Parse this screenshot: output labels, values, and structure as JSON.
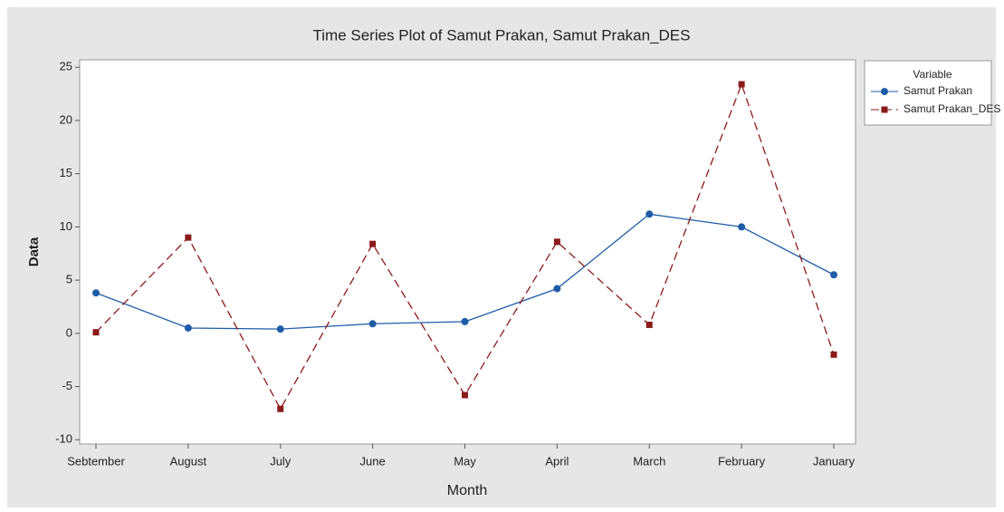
{
  "chart_data": {
    "type": "line",
    "title": "Time Series Plot of Samut Prakan, Samut Prakan_DES",
    "x_label": "Month",
    "y_label": "Data",
    "categories": [
      "Sebtember",
      "August",
      "July",
      "June",
      "May",
      "April",
      "March",
      "February",
      "January"
    ],
    "series": [
      {
        "name": "Samut Prakan",
        "color": "#1f5ca8",
        "marker": "circle",
        "dash": "solid",
        "values": [
          3.8,
          0.5,
          0.4,
          0.9,
          1.1,
          4.2,
          11.2,
          10.0,
          5.5
        ]
      },
      {
        "name": "Samut Prakan_DES",
        "color": "#8b1a1a",
        "marker": "square",
        "dash": "dashed",
        "values": [
          0.1,
          9.0,
          -7.1,
          8.4,
          -5.8,
          8.6,
          0.8,
          23.4,
          -2.0
        ]
      }
    ],
    "ylim": [
      -10.4,
      25.7
    ],
    "yticks": [
      -10,
      -5,
      0,
      5,
      10,
      15,
      20,
      25
    ],
    "grid": false,
    "legend_title": "Variable",
    "legend_position": "right"
  }
}
